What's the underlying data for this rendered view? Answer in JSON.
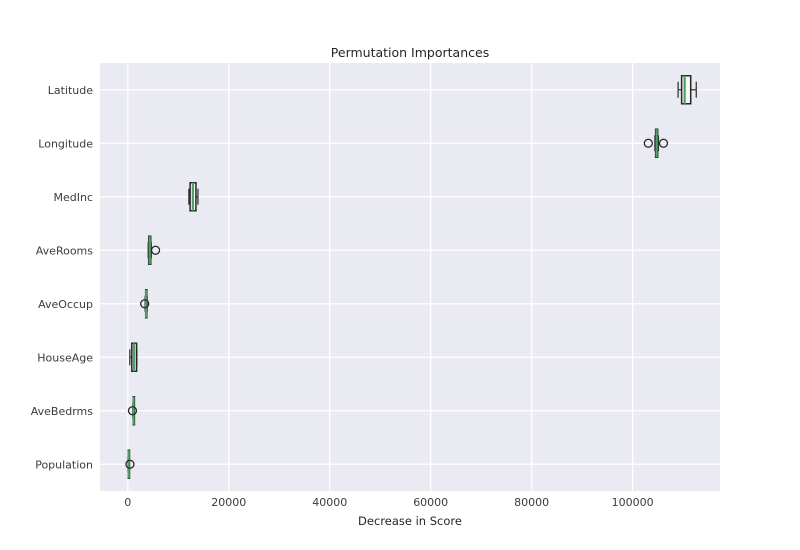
{
  "chart_data": {
    "type": "box",
    "orientation": "horizontal",
    "title": "Permutation Importances",
    "xlabel": "Decrease in Score",
    "ylabel": "",
    "grid": true,
    "legend": "none",
    "xlim": [
      -5500,
      117300
    ],
    "xticks": [
      0,
      20000,
      40000,
      60000,
      80000,
      100000
    ],
    "xtick_labels": [
      "0",
      "20000",
      "40000",
      "60000",
      "80000",
      "100000"
    ],
    "categories": [
      "Latitude",
      "Longitude",
      "MedInc",
      "AveRooms",
      "AveOccup",
      "HouseAge",
      "AveBedrms",
      "Population"
    ],
    "boxes": [
      {
        "label": "Latitude",
        "whislo": 109000,
        "q1": 109700,
        "med": 110300,
        "q3": 111500,
        "whishi": 112600,
        "fliers": []
      },
      {
        "label": "Longitude",
        "whislo": 104400,
        "q1": 104550,
        "med": 104750,
        "q3": 104950,
        "whishi": 105100,
        "fliers": [
          103100,
          106100
        ]
      },
      {
        "label": "MedInc",
        "whislo": 12100,
        "q1": 12350,
        "med": 12900,
        "q3": 13500,
        "whishi": 13900,
        "fliers": []
      },
      {
        "label": "AveRooms",
        "whislo": 4050,
        "q1": 4150,
        "med": 4350,
        "q3": 4550,
        "whishi": 4650,
        "fliers": [
          5500
        ]
      },
      {
        "label": "AveOccup",
        "whislo": 3450,
        "q1": 3550,
        "med": 3650,
        "q3": 3750,
        "whishi": 3850,
        "fliers": [
          3350
        ]
      },
      {
        "label": "HouseAge",
        "whislo": 400,
        "q1": 800,
        "med": 1250,
        "q3": 1750,
        "whishi": 1800,
        "fliers": []
      },
      {
        "label": "AveBedrms",
        "whislo": 1000,
        "q1": 1080,
        "med": 1150,
        "q3": 1250,
        "whishi": 1300,
        "fliers": [
          930
        ]
      },
      {
        "label": "Population",
        "whislo": 50,
        "q1": 100,
        "med": 180,
        "q3": 280,
        "whishi": 320,
        "fliers": [
          430
        ]
      }
    ],
    "colors": {
      "figure_bg": "#ffffff",
      "axes_bg": "#eaeaf2",
      "gridline": "#ffffff",
      "box_edge": "#262626",
      "box_fill": "#f4f9f4",
      "median": "#4ea266",
      "whisker": "#3a3a3a",
      "flier_edge": "#262626",
      "title_text": "#262626",
      "tick_text": "#3c3c3c"
    }
  }
}
